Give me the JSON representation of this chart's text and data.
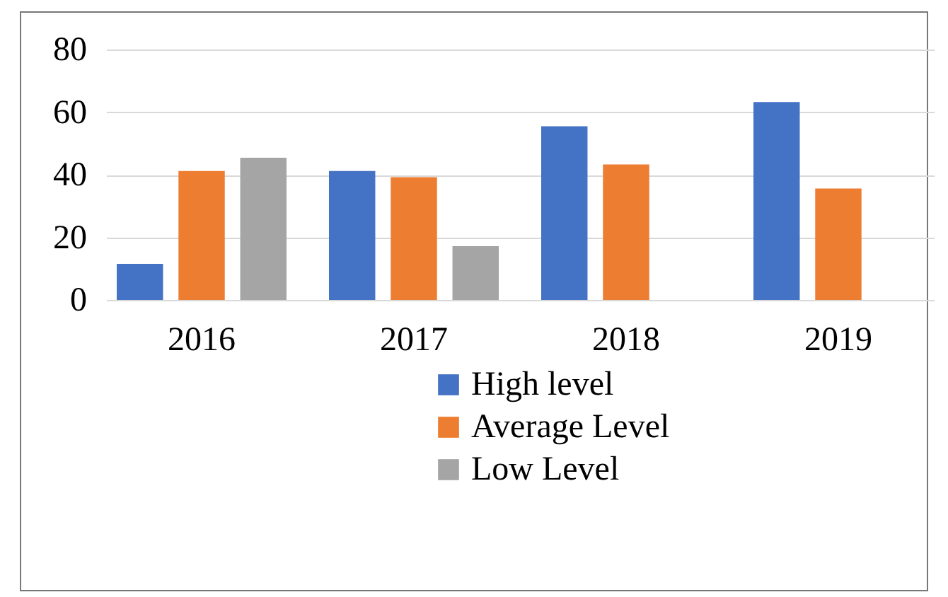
{
  "chart_data": {
    "type": "bar",
    "categories": [
      "2016",
      "2017",
      "2018",
      "2019"
    ],
    "series": [
      {
        "name": "High level",
        "color": "#4472c4",
        "values": [
          11.5,
          41.2,
          55.5,
          63.2
        ]
      },
      {
        "name": "Average Level",
        "color": "#ed7d31",
        "values": [
          41.2,
          39.2,
          43.3,
          35.6
        ]
      },
      {
        "name": "Low Level",
        "color": "#a5a5a5",
        "values": [
          45.4,
          17.2,
          null,
          null
        ]
      }
    ],
    "ylim": [
      0,
      80
    ],
    "yticks": [
      0,
      20,
      40,
      60,
      80
    ],
    "grid": "y",
    "legend": "bottom"
  }
}
